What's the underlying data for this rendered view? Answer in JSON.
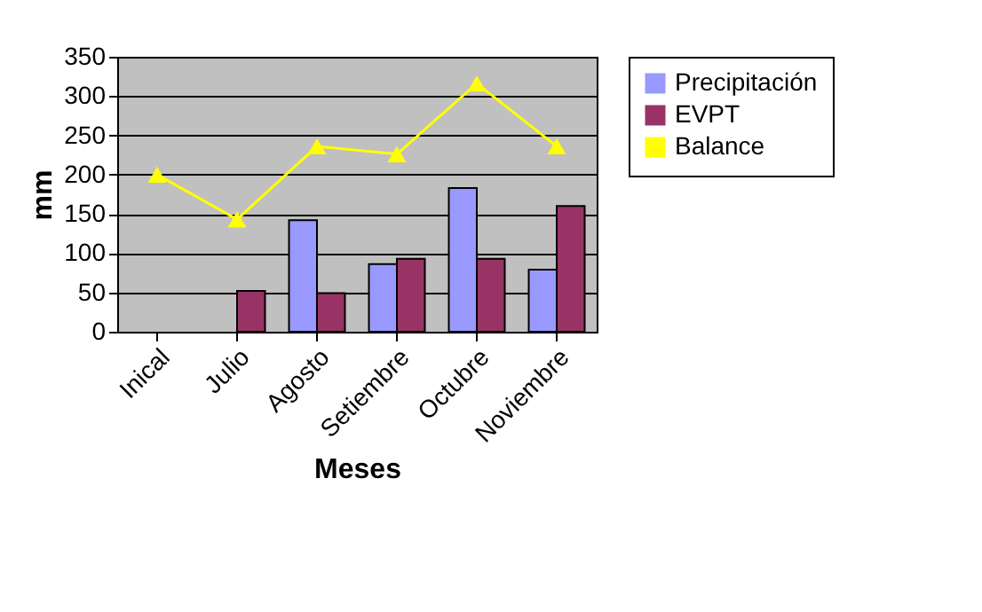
{
  "chart_data": {
    "type": "bar",
    "xlabel": "Meses",
    "ylabel": "mm",
    "categories": [
      "Inical",
      "Julio",
      "Agosto",
      "Setiembre",
      "Octubre",
      "Noviembre"
    ],
    "series": [
      {
        "name": "Precipitación",
        "color": "#9999ff",
        "values": [
          null,
          null,
          142,
          86,
          183,
          79
        ]
      },
      {
        "name": "EVPT",
        "color": "#993366",
        "values": [
          null,
          52,
          49,
          93,
          93,
          160
        ]
      },
      {
        "name": "Balance",
        "type": "line",
        "color": "#ffff00",
        "marker": "triangle",
        "values": [
          200,
          143,
          236,
          226,
          316,
          236
        ]
      }
    ],
    "ylim": [
      0,
      350
    ],
    "yticks": [
      0,
      50,
      100,
      150,
      200,
      250,
      300,
      350
    ],
    "grid": "y",
    "legend": "right"
  }
}
